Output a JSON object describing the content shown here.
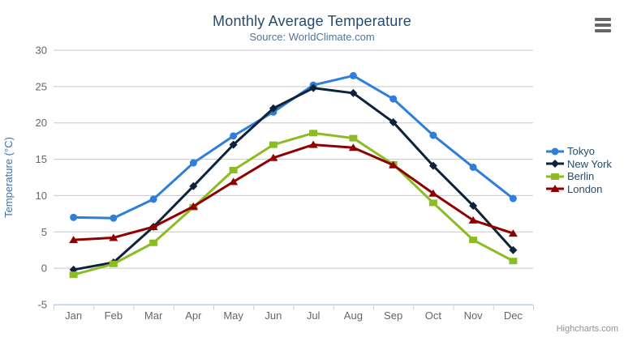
{
  "credits": {
    "label": "Highcharts.com"
  },
  "export_menu": {
    "icon": "hamburger-icon"
  },
  "colors": {
    "title": "#274b6d",
    "subtitle": "#4d759e",
    "axis_label": "#666666",
    "axis_title": "#4572a7",
    "legend_text": "#274b6d",
    "grid": "#c8c8c8",
    "axis_line": "#c0d0e0",
    "credits": "#909090",
    "hamburger": "#666666",
    "background": "#ffffff"
  },
  "chart_data": {
    "type": "line",
    "title": "Monthly Average Temperature",
    "subtitle": "Source: WorldClimate.com",
    "xlabel": "",
    "ylabel": "Temperature (°C)",
    "ylim": [
      -5,
      30
    ],
    "yticks": [
      30,
      25,
      20,
      15,
      10,
      5,
      0,
      -5
    ],
    "grid": true,
    "legend_position": "right",
    "categories": [
      "Jan",
      "Feb",
      "Mar",
      "Apr",
      "May",
      "Jun",
      "Jul",
      "Aug",
      "Sep",
      "Oct",
      "Nov",
      "Dec"
    ],
    "series": [
      {
        "name": "Tokyo",
        "color": "#2f7ed8",
        "marker": "circle",
        "values": [
          7.0,
          6.9,
          9.5,
          14.5,
          18.2,
          21.5,
          25.2,
          26.5,
          23.3,
          18.3,
          13.9,
          9.6
        ]
      },
      {
        "name": "New York",
        "color": "#0d233a",
        "marker": "diamond",
        "values": [
          -0.2,
          0.8,
          5.7,
          11.3,
          17.0,
          22.0,
          24.8,
          24.1,
          20.1,
          14.1,
          8.6,
          2.5
        ]
      },
      {
        "name": "Berlin",
        "color": "#8bbc21",
        "marker": "square",
        "values": [
          -0.9,
          0.6,
          3.5,
          8.4,
          13.5,
          17.0,
          18.6,
          17.9,
          14.3,
          9.0,
          3.9,
          1.0
        ]
      },
      {
        "name": "London",
        "color": "#910000",
        "marker": "triangle",
        "values": [
          3.9,
          4.2,
          5.7,
          8.5,
          11.9,
          15.2,
          17.0,
          16.6,
          14.2,
          10.3,
          6.6,
          4.8
        ]
      }
    ]
  }
}
